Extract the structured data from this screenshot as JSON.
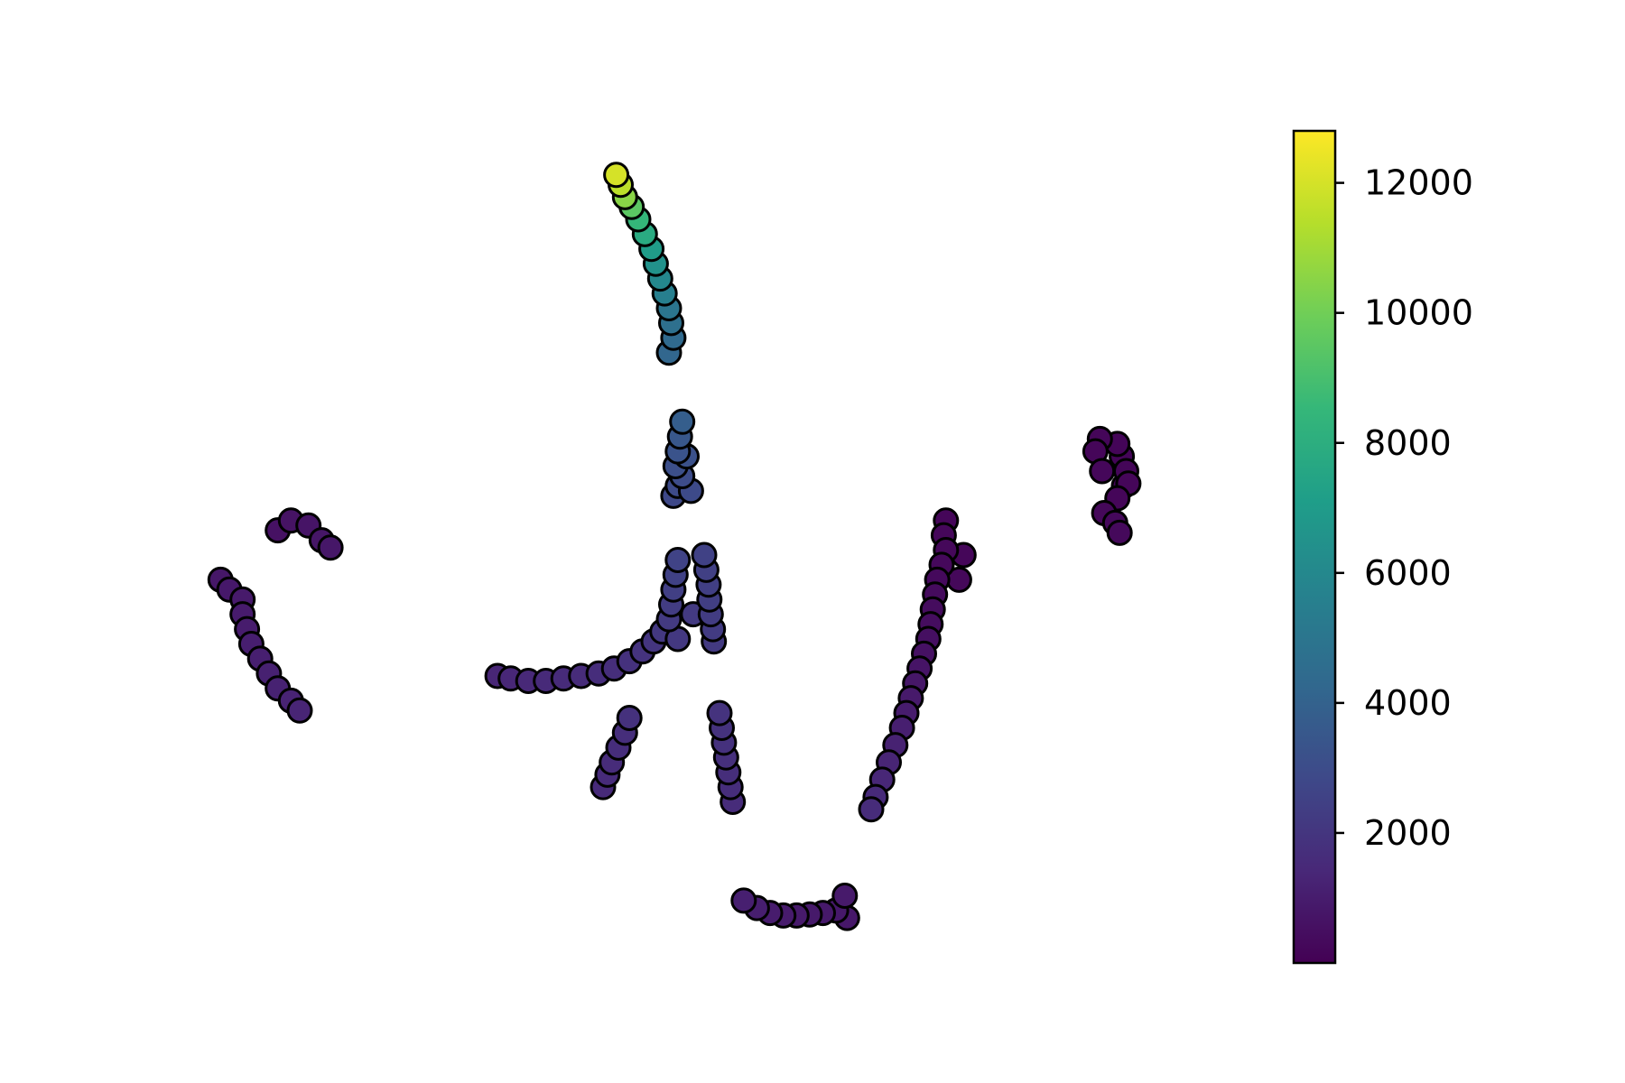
{
  "chart_data": {
    "type": "scatter",
    "title": "",
    "xlabel": "",
    "ylabel": "",
    "axes_visible": false,
    "grid": false,
    "marker": {
      "shape": "circle",
      "edge_color": "#000000"
    },
    "colormap": {
      "name": "viridis",
      "stops": [
        "#440154",
        "#482878",
        "#3e4989",
        "#31688e",
        "#26828e",
        "#1f9e89",
        "#35b779",
        "#6ece58",
        "#b5de2b",
        "#fde725"
      ]
    },
    "colorbar": {
      "placement": "right",
      "range": [
        0,
        12800
      ],
      "ticks": [
        2000,
        4000,
        6000,
        8000,
        10000,
        12000
      ],
      "tick_labels": [
        "2000",
        "4000",
        "6000",
        "8000",
        "10000",
        "12000"
      ]
    },
    "clusters": [
      {
        "id": "top-arc",
        "points": [
          [
            -8.5,
            11.2,
            12000
          ],
          [
            -8.4,
            11.0,
            11500
          ],
          [
            -8.3,
            10.75,
            10500
          ],
          [
            -8.15,
            10.55,
            9500
          ],
          [
            -8.0,
            10.3,
            8500
          ],
          [
            -7.85,
            10.0,
            7800
          ],
          [
            -7.7,
            9.7,
            7000
          ],
          [
            -7.6,
            9.4,
            6500
          ],
          [
            -7.5,
            9.1,
            6000
          ],
          [
            -7.4,
            8.8,
            5500
          ],
          [
            -7.3,
            8.5,
            5000
          ],
          [
            -7.25,
            8.2,
            4700
          ],
          [
            -7.2,
            7.9,
            4400
          ],
          [
            -7.3,
            7.6,
            4200
          ]
        ]
      },
      {
        "id": "mid-upper",
        "points": [
          [
            -7.0,
            6.2,
            3800
          ],
          [
            -7.05,
            5.9,
            3500
          ],
          [
            -7.1,
            5.6,
            3300
          ],
          [
            -7.15,
            5.3,
            3100
          ],
          [
            -7.0,
            5.1,
            3000
          ],
          [
            -7.1,
            4.9,
            2900
          ],
          [
            -7.2,
            4.7,
            2800
          ],
          [
            -6.8,
            4.8,
            2900
          ],
          [
            -6.9,
            5.5,
            3200
          ]
        ]
      },
      {
        "id": "central-hook",
        "points": [
          [
            -7.1,
            3.4,
            2600
          ],
          [
            -7.15,
            3.1,
            2500
          ],
          [
            -7.2,
            2.8,
            2400
          ],
          [
            -7.25,
            2.5,
            2300
          ],
          [
            -7.3,
            2.2,
            2200
          ],
          [
            -7.45,
            1.95,
            2100
          ],
          [
            -7.65,
            1.75,
            2000
          ],
          [
            -7.9,
            1.55,
            1900
          ],
          [
            -8.2,
            1.35,
            1800
          ],
          [
            -8.55,
            1.2,
            1700
          ],
          [
            -8.9,
            1.1,
            1650
          ],
          [
            -9.3,
            1.05,
            1600
          ],
          [
            -9.7,
            1.0,
            1550
          ],
          [
            -10.1,
            0.95,
            1500
          ],
          [
            -10.5,
            0.95,
            1450
          ],
          [
            -10.9,
            1.0,
            1400
          ],
          [
            -11.2,
            1.05,
            1350
          ],
          [
            -7.1,
            1.8,
            2100
          ],
          [
            -6.75,
            2.3,
            2200
          ]
        ]
      },
      {
        "id": "central-right-branch",
        "points": [
          [
            -6.5,
            3.5,
            2500
          ],
          [
            -6.45,
            3.2,
            2450
          ],
          [
            -6.4,
            2.9,
            2400
          ],
          [
            -6.38,
            2.6,
            2350
          ],
          [
            -6.35,
            2.3,
            2300
          ],
          [
            -6.3,
            2.0,
            2250
          ],
          [
            -6.28,
            1.75,
            2200
          ]
        ]
      },
      {
        "id": "lower-left-stem",
        "points": [
          [
            -8.2,
            0.2,
            1800
          ],
          [
            -8.3,
            -0.1,
            1700
          ],
          [
            -8.45,
            -0.4,
            1650
          ],
          [
            -8.6,
            -0.7,
            1600
          ],
          [
            -8.7,
            -0.95,
            1550
          ],
          [
            -8.8,
            -1.2,
            1500
          ]
        ]
      },
      {
        "id": "lower-right-stem",
        "points": [
          [
            -6.15,
            0.3,
            1900
          ],
          [
            -6.1,
            0.0,
            1850
          ],
          [
            -6.05,
            -0.3,
            1800
          ],
          [
            -6.0,
            -0.6,
            1750
          ],
          [
            -5.95,
            -0.9,
            1700
          ],
          [
            -5.9,
            -1.2,
            1650
          ],
          [
            -5.85,
            -1.5,
            1600
          ]
        ]
      },
      {
        "id": "bottom-cluster",
        "points": [
          [
            -5.6,
            -3.5,
            1100
          ],
          [
            -5.3,
            -3.65,
            1050
          ],
          [
            -5.0,
            -3.75,
            1000
          ],
          [
            -4.7,
            -3.8,
            950
          ],
          [
            -4.4,
            -3.8,
            900
          ],
          [
            -4.1,
            -3.78,
            880
          ],
          [
            -3.8,
            -3.75,
            860
          ],
          [
            -3.5,
            -3.7,
            850
          ],
          [
            -3.3,
            -3.4,
            900
          ],
          [
            -3.25,
            -3.85,
            820
          ]
        ]
      },
      {
        "id": "right-arc",
        "points": [
          [
            -1.0,
            4.2,
            200
          ],
          [
            -1.05,
            3.9,
            220
          ],
          [
            -1.0,
            3.6,
            240
          ],
          [
            -1.1,
            3.3,
            260
          ],
          [
            -1.2,
            3.0,
            300
          ],
          [
            -1.25,
            2.7,
            350
          ],
          [
            -1.3,
            2.4,
            400
          ],
          [
            -1.35,
            2.1,
            450
          ],
          [
            -1.4,
            1.8,
            500
          ],
          [
            -1.5,
            1.5,
            600
          ],
          [
            -1.6,
            1.2,
            700
          ],
          [
            -1.7,
            0.9,
            800
          ],
          [
            -1.8,
            0.6,
            900
          ],
          [
            -1.9,
            0.3,
            1000
          ],
          [
            -2.0,
            0.0,
            1100
          ],
          [
            -2.15,
            -0.35,
            1200
          ],
          [
            -2.3,
            -0.7,
            1300
          ],
          [
            -2.45,
            -1.05,
            1400
          ],
          [
            -2.6,
            -1.4,
            1500
          ],
          [
            -2.7,
            -1.65,
            1600
          ],
          [
            -0.6,
            3.5,
            200
          ],
          [
            -0.7,
            3.0,
            250
          ]
        ]
      },
      {
        "id": "far-right-cluster",
        "points": [
          [
            2.4,
            5.6,
            200
          ],
          [
            2.5,
            5.85,
            180
          ],
          [
            2.9,
            5.75,
            160
          ],
          [
            3.0,
            5.5,
            150
          ],
          [
            3.1,
            5.2,
            170
          ],
          [
            3.15,
            4.95,
            180
          ],
          [
            2.9,
            4.65,
            200
          ],
          [
            2.6,
            4.35,
            240
          ],
          [
            2.85,
            4.15,
            260
          ],
          [
            2.95,
            3.95,
            280
          ],
          [
            3.05,
            4.9,
            160
          ],
          [
            2.55,
            5.2,
            220
          ]
        ]
      },
      {
        "id": "left-small",
        "points": [
          [
            -16.2,
            4.0,
            600
          ],
          [
            -15.9,
            4.2,
            650
          ],
          [
            -15.5,
            4.1,
            700
          ],
          [
            -15.2,
            3.8,
            750
          ],
          [
            -15.0,
            3.65,
            800
          ]
        ]
      },
      {
        "id": "left-arc",
        "points": [
          [
            -17.5,
            3.0,
            800
          ],
          [
            -17.3,
            2.8,
            850
          ],
          [
            -17.0,
            2.6,
            900
          ],
          [
            -17.0,
            2.3,
            950
          ],
          [
            -16.9,
            2.0,
            1000
          ],
          [
            -16.8,
            1.7,
            1050
          ],
          [
            -16.6,
            1.4,
            1100
          ],
          [
            -16.4,
            1.1,
            1150
          ],
          [
            -16.2,
            0.8,
            1200
          ],
          [
            -15.9,
            0.55,
            1250
          ],
          [
            -15.7,
            0.35,
            1300
          ]
        ]
      }
    ]
  }
}
